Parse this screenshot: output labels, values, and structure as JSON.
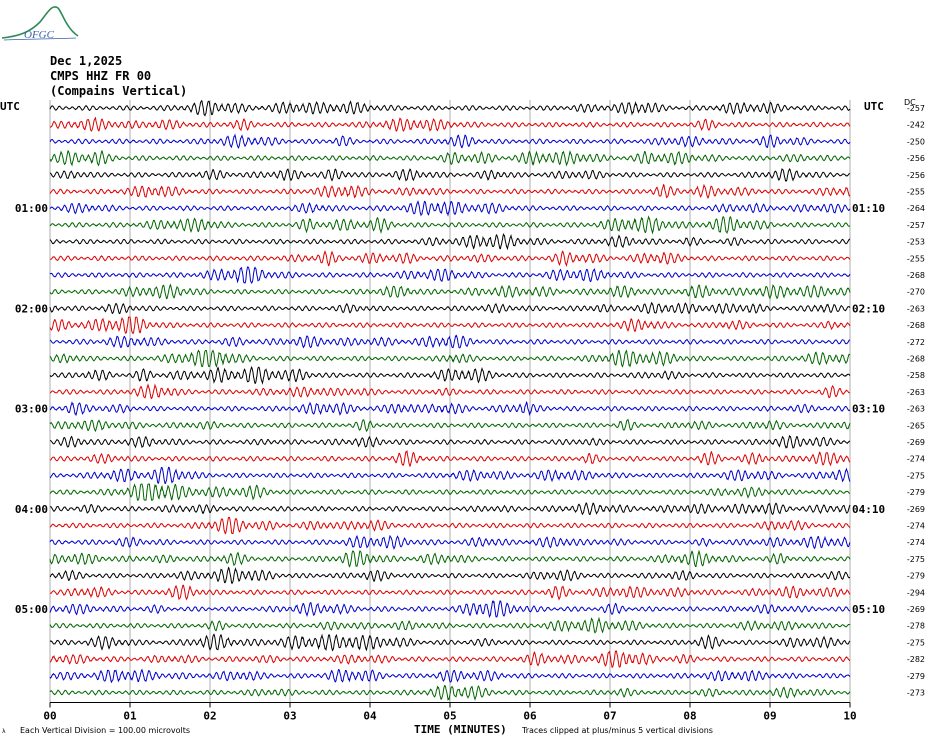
{
  "logo": {
    "text": "OFGC"
  },
  "header": {
    "date": "Dec 1,2025",
    "station": "CMPS HHZ FR 00",
    "location": "(Compains Vertical)"
  },
  "utc_left": "UTC",
  "utc_right": "UTC",
  "dc_label": "DC",
  "footer": {
    "scale": "Each Vertical Division =  100.00 microvolts",
    "xlabel": "TIME (MINUTES)",
    "clip": "Traces clipped at plus/minus 5 vertical divisions"
  },
  "chart_data": {
    "type": "line",
    "title": "",
    "xlabel": "TIME (MINUTES)",
    "ylabel": "",
    "xlim": [
      0,
      10
    ],
    "x_ticks": [
      "00",
      "01",
      "02",
      "03",
      "04",
      "05",
      "06",
      "07",
      "08",
      "09",
      "10"
    ],
    "row_minutes": 10,
    "trace_colors": [
      "#000000",
      "#dd0000",
      "#0000cc",
      "#006600"
    ],
    "left_time_labels": [
      {
        "row": 6,
        "text": "01:00"
      },
      {
        "row": 12,
        "text": "02:00"
      },
      {
        "row": 18,
        "text": "03:00"
      },
      {
        "row": 24,
        "text": "04:00"
      },
      {
        "row": 30,
        "text": "05:00"
      }
    ],
    "right_time_labels": [
      {
        "row": 6,
        "text": "01:10"
      },
      {
        "row": 12,
        "text": "02:10"
      },
      {
        "row": 18,
        "text": "03:10"
      },
      {
        "row": 24,
        "text": "04:10"
      },
      {
        "row": 30,
        "text": "05:10"
      }
    ],
    "dc_offsets": [
      -257,
      -242,
      -250,
      -256,
      -256,
      -255,
      -264,
      -257,
      -253,
      -255,
      -268,
      -270,
      -263,
      -268,
      -272,
      -268,
      -258,
      -263,
      -263,
      -265,
      -269,
      -274,
      -275,
      -279,
      -269,
      -274,
      -274,
      -275,
      -279,
      -294,
      -269,
      -278,
      -275,
      -282,
      -279,
      -273
    ]
  }
}
